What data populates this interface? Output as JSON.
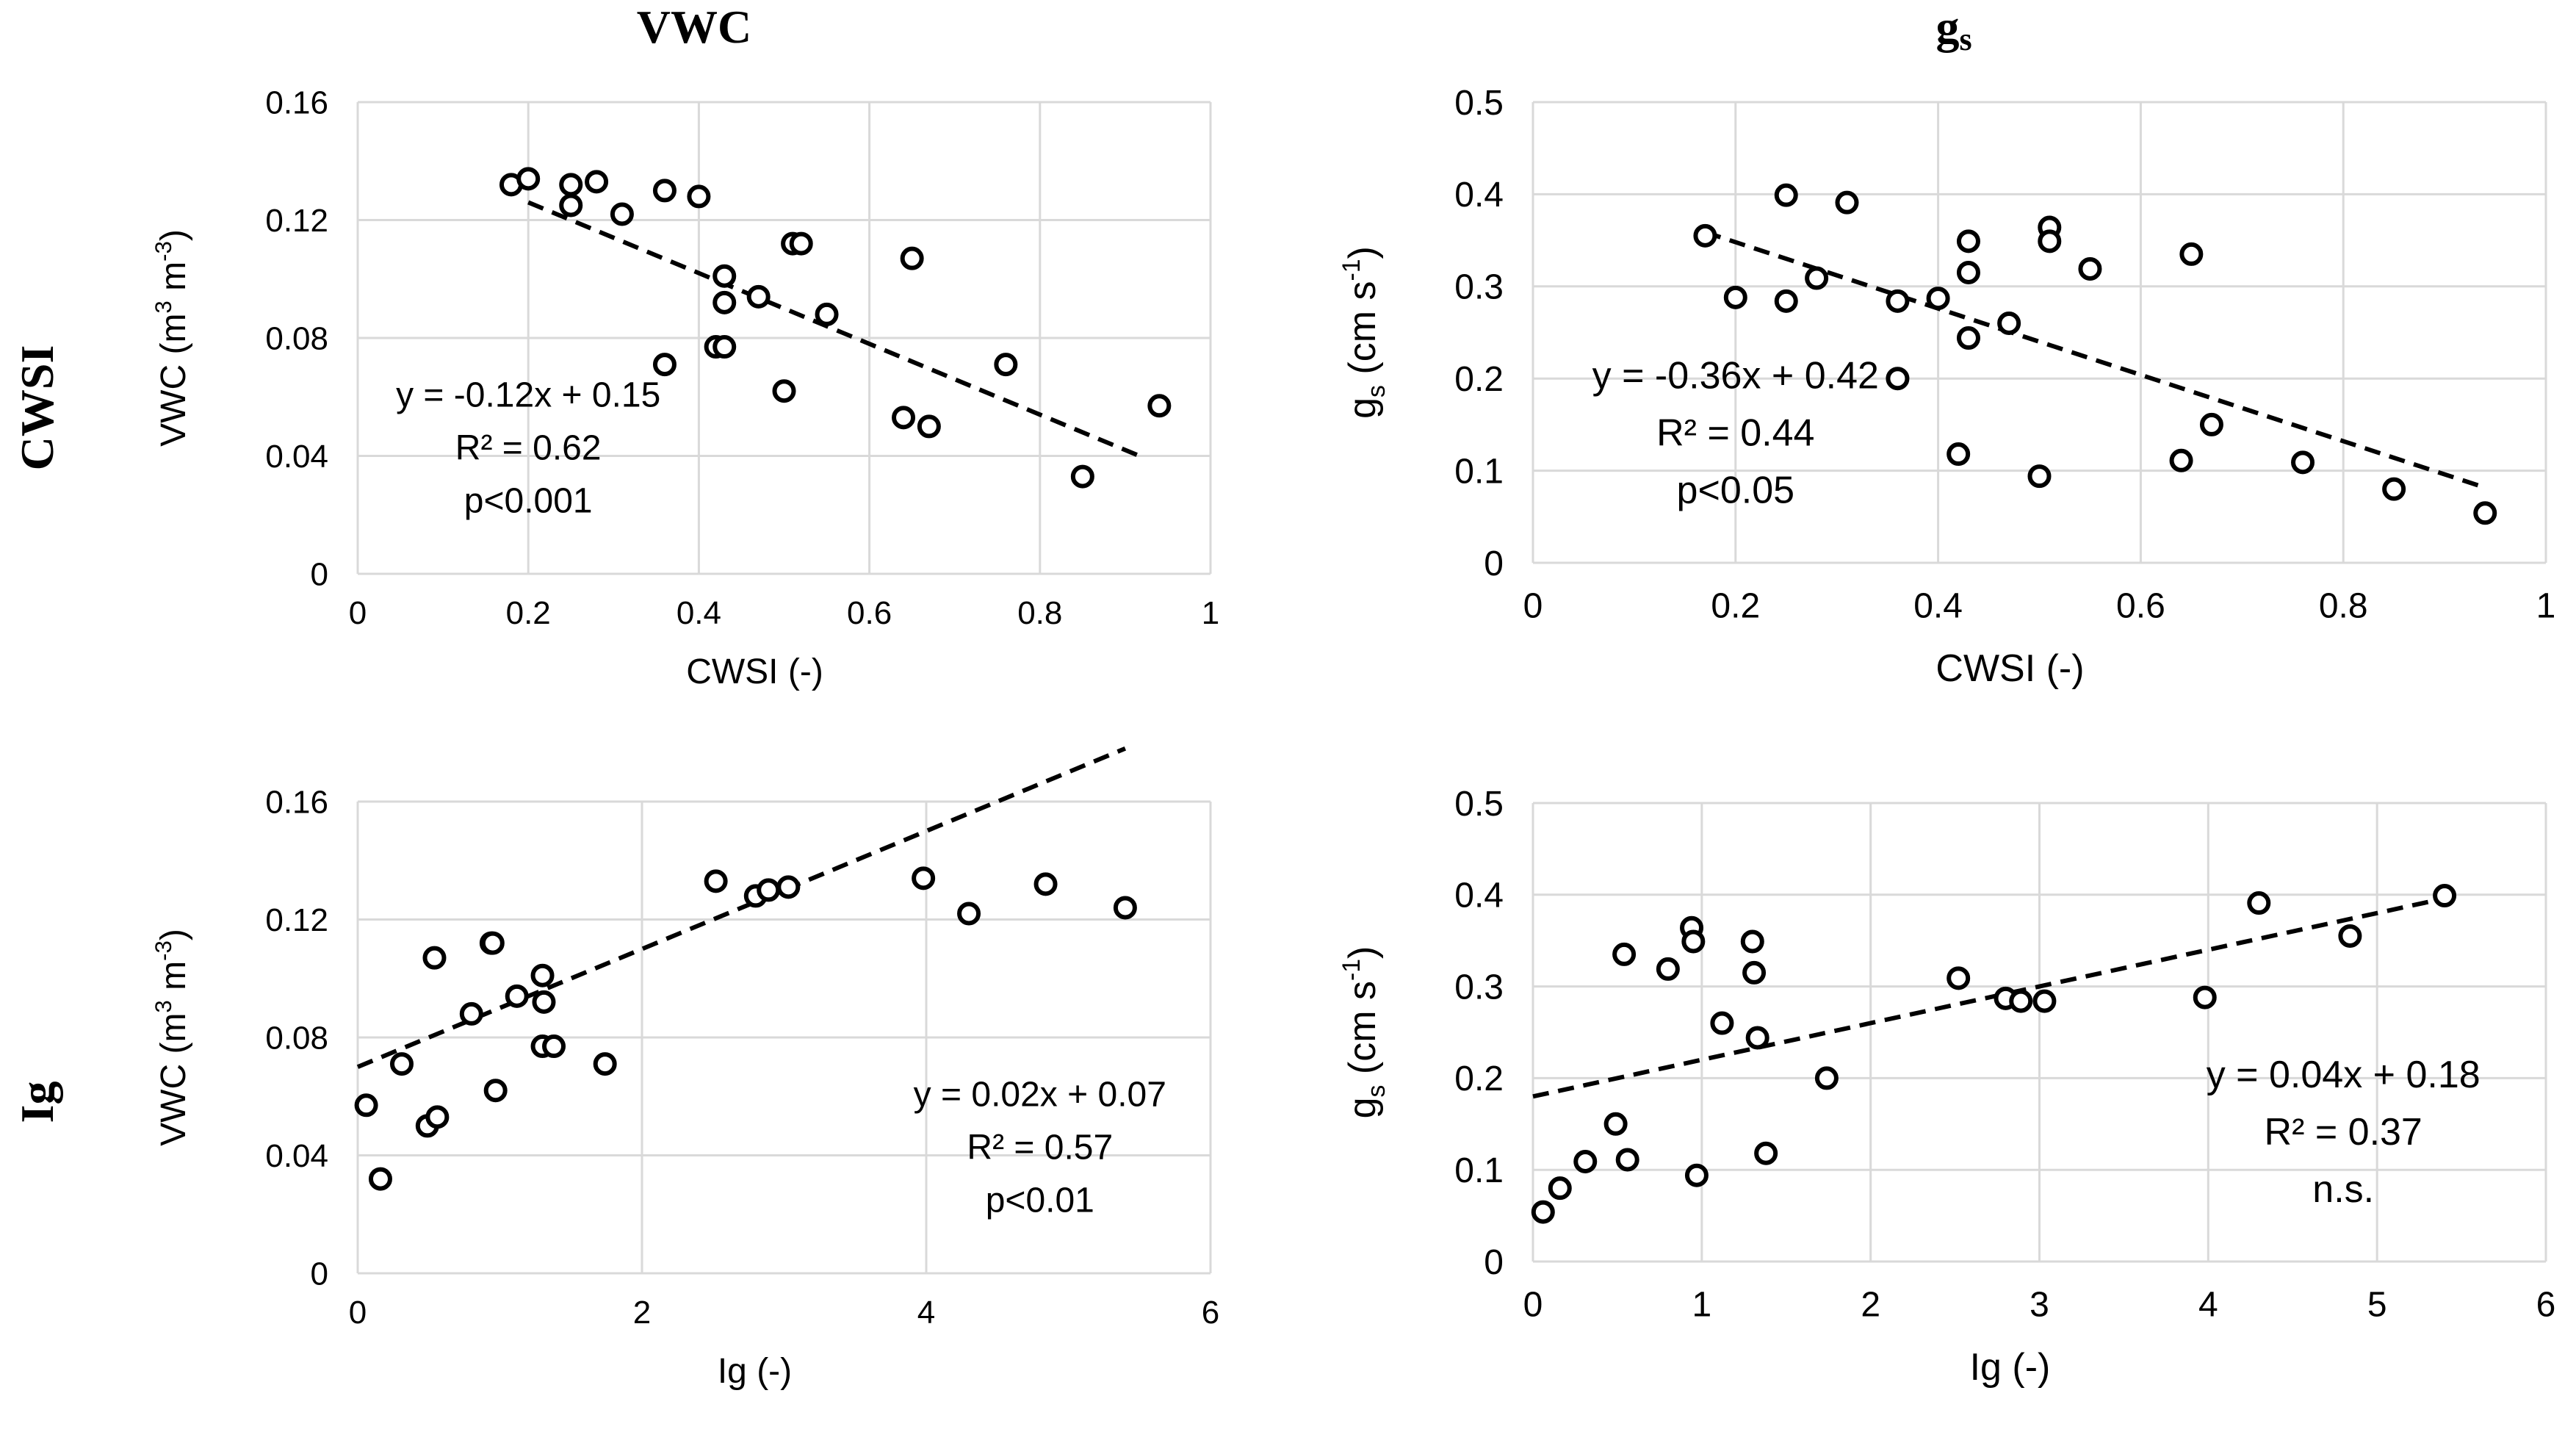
{
  "headers": {
    "col_vwc": "VWC",
    "col_gs_main": "g",
    "col_gs_sub": "s",
    "row_cwsi": "CWSI",
    "row_ig": "Ig"
  },
  "colors": {
    "marker": "#000000",
    "gridline": "#d9d9d9",
    "trend": "#000000"
  },
  "chart_data": [
    {
      "id": "vwc_cwsi",
      "type": "scatter",
      "xlabel": "CWSI (-)",
      "ylabel_parts": [
        "VWC (m",
        "3",
        " m",
        "-3",
        ")"
      ],
      "xlim": [
        0,
        1
      ],
      "ylim": [
        0,
        0.16
      ],
      "xticks": [
        "0",
        "0.2",
        "0.4",
        "0.6",
        "0.8",
        "1"
      ],
      "yticks": [
        "0",
        "0.04",
        "0.08",
        "0.12",
        "0.16"
      ],
      "grid": true,
      "points": [
        [
          0.18,
          0.132
        ],
        [
          0.2,
          0.134
        ],
        [
          0.25,
          0.132
        ],
        [
          0.25,
          0.125
        ],
        [
          0.28,
          0.133
        ],
        [
          0.31,
          0.122
        ],
        [
          0.36,
          0.13
        ],
        [
          0.4,
          0.128
        ],
        [
          0.43,
          0.101
        ],
        [
          0.43,
          0.092
        ],
        [
          0.42,
          0.077
        ],
        [
          0.43,
          0.077
        ],
        [
          0.36,
          0.071
        ],
        [
          0.47,
          0.094
        ],
        [
          0.51,
          0.112
        ],
        [
          0.52,
          0.112
        ],
        [
          0.5,
          0.062
        ],
        [
          0.55,
          0.088
        ],
        [
          0.65,
          0.107
        ],
        [
          0.64,
          0.053
        ],
        [
          0.67,
          0.05
        ],
        [
          0.76,
          0.071
        ],
        [
          0.85,
          0.033
        ],
        [
          0.94,
          0.057
        ]
      ],
      "trendline": {
        "slope": -0.12,
        "intercept": 0.15,
        "x_range": [
          0.2,
          0.92
        ]
      },
      "annotations": [
        "y = -0.12x + 0.15",
        "R² = 0.62",
        "p<0.001"
      ],
      "annotation_position": "bottom-left"
    },
    {
      "id": "gs_cwsi",
      "type": "scatter",
      "xlabel": "CWSI (-)",
      "ylabel_parts": [
        "g",
        "s",
        " (cm s",
        "-1",
        ")"
      ],
      "xlim": [
        0,
        1
      ],
      "ylim": [
        0,
        0.5
      ],
      "xticks": [
        "0",
        "0.2",
        "0.4",
        "0.6",
        "0.8",
        "1"
      ],
      "yticks": [
        "0",
        "0.1",
        "0.2",
        "0.3",
        "0.4",
        "0.5"
      ],
      "grid": true,
      "points": [
        [
          0.17,
          0.355
        ],
        [
          0.2,
          0.288
        ],
        [
          0.25,
          0.399
        ],
        [
          0.25,
          0.284
        ],
        [
          0.28,
          0.309
        ],
        [
          0.31,
          0.391
        ],
        [
          0.36,
          0.284
        ],
        [
          0.36,
          0.2
        ],
        [
          0.4,
          0.287
        ],
        [
          0.42,
          0.118
        ],
        [
          0.43,
          0.349
        ],
        [
          0.43,
          0.315
        ],
        [
          0.43,
          0.244
        ],
        [
          0.47,
          0.26
        ],
        [
          0.5,
          0.094
        ],
        [
          0.51,
          0.364
        ],
        [
          0.51,
          0.349
        ],
        [
          0.55,
          0.319
        ],
        [
          0.64,
          0.111
        ],
        [
          0.65,
          0.335
        ],
        [
          0.67,
          0.15
        ],
        [
          0.76,
          0.109
        ],
        [
          0.85,
          0.08
        ],
        [
          0.94,
          0.054
        ]
      ],
      "trendline": {
        "slope": -0.36,
        "intercept": 0.42,
        "x_range": [
          0.17,
          0.94
        ]
      },
      "annotations": [
        "y = -0.36x + 0.42",
        "R² = 0.44",
        "p<0.05"
      ],
      "annotation_position": "bottom-left"
    },
    {
      "id": "vwc_ig",
      "type": "scatter",
      "xlabel": "Ig (-)",
      "ylabel_parts": [
        "VWC (m",
        "3",
        " m",
        "-3",
        ")"
      ],
      "xlim": [
        0,
        6
      ],
      "ylim": [
        0,
        0.16
      ],
      "xticks": [
        "0",
        "2",
        "4",
        "6"
      ],
      "yticks": [
        "0",
        "0.04",
        "0.08",
        "0.12",
        "0.16"
      ],
      "grid": true,
      "points": [
        [
          0.06,
          0.057
        ],
        [
          0.16,
          0.032
        ],
        [
          0.31,
          0.071
        ],
        [
          0.49,
          0.05
        ],
        [
          0.54,
          0.107
        ],
        [
          0.56,
          0.053
        ],
        [
          0.8,
          0.088
        ],
        [
          0.94,
          0.112
        ],
        [
          0.95,
          0.112
        ],
        [
          0.97,
          0.062
        ],
        [
          1.12,
          0.094
        ],
        [
          1.3,
          0.101
        ],
        [
          1.31,
          0.092
        ],
        [
          1.3,
          0.077
        ],
        [
          1.38,
          0.077
        ],
        [
          1.74,
          0.071
        ],
        [
          2.52,
          0.133
        ],
        [
          2.8,
          0.128
        ],
        [
          2.89,
          0.13
        ],
        [
          3.03,
          0.131
        ],
        [
          3.98,
          0.134
        ],
        [
          4.3,
          0.122
        ],
        [
          4.84,
          0.132
        ],
        [
          5.4,
          0.124
        ]
      ],
      "trendline": {
        "slope": 0.02,
        "intercept": 0.07,
        "x_range": [
          0.0,
          5.4
        ]
      },
      "annotations": [
        "y = 0.02x + 0.07",
        "R² = 0.57",
        "p<0.01"
      ],
      "annotation_position": "bottom-right"
    },
    {
      "id": "gs_ig",
      "type": "scatter",
      "xlabel": "Ig (-)",
      "ylabel_parts": [
        "g",
        "s",
        " (cm s",
        "-1",
        ")"
      ],
      "xlim": [
        0,
        6
      ],
      "ylim": [
        0,
        0.5
      ],
      "xticks": [
        "0",
        "1",
        "2",
        "3",
        "4",
        "5",
        "6"
      ],
      "yticks": [
        "0",
        "0.1",
        "0.2",
        "0.3",
        "0.4",
        "0.5"
      ],
      "grid": true,
      "points": [
        [
          0.06,
          0.054
        ],
        [
          0.16,
          0.08
        ],
        [
          0.31,
          0.109
        ],
        [
          0.49,
          0.15
        ],
        [
          0.54,
          0.335
        ],
        [
          0.56,
          0.111
        ],
        [
          0.8,
          0.319
        ],
        [
          0.94,
          0.364
        ],
        [
          0.95,
          0.349
        ],
        [
          0.97,
          0.094
        ],
        [
          1.12,
          0.26
        ],
        [
          1.3,
          0.349
        ],
        [
          1.31,
          0.315
        ],
        [
          1.33,
          0.244
        ],
        [
          1.38,
          0.118
        ],
        [
          1.74,
          0.2
        ],
        [
          2.52,
          0.309
        ],
        [
          2.8,
          0.287
        ],
        [
          2.89,
          0.284
        ],
        [
          3.03,
          0.284
        ],
        [
          3.98,
          0.288
        ],
        [
          4.3,
          0.391
        ],
        [
          4.84,
          0.355
        ],
        [
          5.4,
          0.399
        ]
      ],
      "trendline": {
        "slope": 0.04,
        "intercept": 0.18,
        "x_range": [
          0.0,
          5.4
        ]
      },
      "annotations": [
        "y = 0.04x + 0.18",
        "R² = 0.37",
        "n.s."
      ],
      "annotation_position": "bottom-right"
    }
  ]
}
